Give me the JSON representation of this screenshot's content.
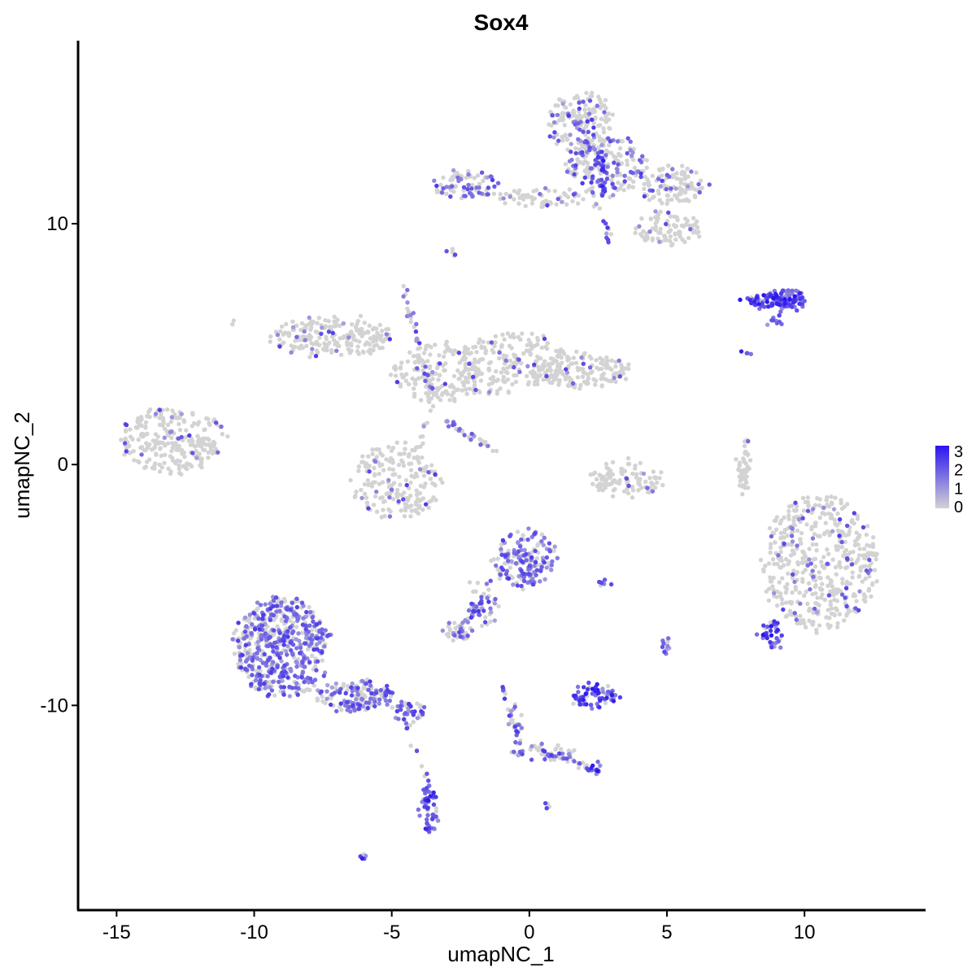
{
  "chart_data": {
    "type": "scatter",
    "title": "Sox4",
    "xlabel": "umapNC_1",
    "ylabel": "umapNC_2",
    "xlim": [
      -16.4,
      14.4
    ],
    "ylim": [
      -18.5,
      17.6
    ],
    "x_ticks": [
      -15,
      -10,
      -5,
      0,
      5,
      10
    ],
    "y_ticks": [
      -10,
      0,
      10
    ],
    "x_tick_labels": [
      "-15",
      "-10",
      "-5",
      "0",
      "5",
      "10"
    ],
    "y_tick_labels": [
      "-10",
      "0",
      "10"
    ],
    "grid": false,
    "color_scale": {
      "label_values": [
        0,
        1,
        2,
        3
      ],
      "labels": [
        "0",
        "1",
        "2",
        "3"
      ],
      "low_color": "#d3d3d3",
      "high_color": "#2a14f0",
      "legend_position": "right"
    },
    "clusters": [
      {
        "cx": -13.0,
        "cy": 1.0,
        "rx": 1.9,
        "ry": 1.4,
        "n": 260,
        "expr": 0.08
      },
      {
        "cx": -7.2,
        "cy": 5.3,
        "rx": 2.2,
        "ry": 0.8,
        "n": 220,
        "expr": 0.06
      },
      {
        "cx": -3.4,
        "cy": 3.8,
        "rx": 1.6,
        "ry": 1.2,
        "n": 160,
        "expr": 0.08
      },
      {
        "cx": -0.6,
        "cy": 4.3,
        "rx": 2.0,
        "ry": 1.2,
        "n": 200,
        "expr": 0.06
      },
      {
        "cx": 1.8,
        "cy": 3.9,
        "rx": 1.9,
        "ry": 0.7,
        "n": 160,
        "expr": 0.05
      },
      {
        "cx": -4.8,
        "cy": -0.7,
        "rx": 1.6,
        "ry": 1.6,
        "n": 200,
        "expr": 0.1
      },
      {
        "cx": 3.5,
        "cy": -0.6,
        "rx": 1.3,
        "ry": 0.8,
        "n": 110,
        "expr": 0.03
      },
      {
        "cx": 1.8,
        "cy": 14.2,
        "rx": 1.2,
        "ry": 1.3,
        "n": 170,
        "expr": 0.25
      },
      {
        "cx": 2.8,
        "cy": 12.4,
        "rx": 1.5,
        "ry": 1.2,
        "n": 190,
        "expr": 0.3
      },
      {
        "cx": 5.2,
        "cy": 11.6,
        "rx": 1.2,
        "ry": 0.8,
        "n": 110,
        "expr": 0.12
      },
      {
        "cx": 5.0,
        "cy": 9.8,
        "rx": 1.1,
        "ry": 0.7,
        "n": 90,
        "expr": 0.1
      },
      {
        "cx": -2.3,
        "cy": 11.6,
        "rx": 1.2,
        "ry": 0.6,
        "n": 80,
        "expr": 0.35
      },
      {
        "cx": 0.4,
        "cy": 11.1,
        "rx": 1.6,
        "ry": 0.35,
        "n": 60,
        "expr": 0.15
      },
      {
        "cx": 8.6,
        "cy": 6.8,
        "rx": 0.9,
        "ry": 0.25,
        "n": 55,
        "expr": 0.85
      },
      {
        "cx": 9.4,
        "cy": 6.9,
        "rx": 0.6,
        "ry": 0.35,
        "n": 70,
        "expr": 0.95
      },
      {
        "cx": 10.6,
        "cy": -4.1,
        "rx": 2.1,
        "ry": 2.8,
        "n": 480,
        "expr": 0.12
      },
      {
        "cx": 8.8,
        "cy": -7.0,
        "rx": 0.4,
        "ry": 0.5,
        "n": 35,
        "expr": 0.8
      },
      {
        "cx": 7.8,
        "cy": -0.2,
        "rx": 0.2,
        "ry": 1.2,
        "n": 40,
        "expr": 0.03
      },
      {
        "cx": -0.2,
        "cy": -3.9,
        "rx": 1.1,
        "ry": 1.2,
        "n": 170,
        "expr": 0.6
      },
      {
        "cx": -1.7,
        "cy": -5.8,
        "rx": 0.5,
        "ry": 1.0,
        "n": 45,
        "expr": 0.45
      },
      {
        "cx": -2.6,
        "cy": -6.9,
        "rx": 0.5,
        "ry": 0.35,
        "n": 40,
        "expr": 0.4
      },
      {
        "cx": -9.0,
        "cy": -7.6,
        "rx": 1.7,
        "ry": 2.1,
        "n": 560,
        "expr": 0.6
      },
      {
        "cx": -6.3,
        "cy": -9.6,
        "rx": 1.4,
        "ry": 0.6,
        "n": 150,
        "expr": 0.5
      },
      {
        "cx": -4.3,
        "cy": -10.2,
        "rx": 0.6,
        "ry": 0.4,
        "n": 40,
        "expr": 0.5
      },
      {
        "cx": -3.6,
        "cy": -14.3,
        "rx": 0.35,
        "ry": 1.0,
        "n": 55,
        "expr": 0.75
      },
      {
        "cx": 2.4,
        "cy": -9.6,
        "rx": 0.8,
        "ry": 0.45,
        "n": 70,
        "expr": 0.85
      },
      {
        "cx": 0.5,
        "cy": -12.0,
        "rx": 1.2,
        "ry": 0.3,
        "n": 45,
        "expr": 0.5
      },
      {
        "cx": 2.4,
        "cy": -12.6,
        "rx": 0.3,
        "ry": 0.2,
        "n": 15,
        "expr": 0.8
      },
      {
        "cx": -0.5,
        "cy": -10.6,
        "rx": 0.2,
        "ry": 0.8,
        "n": 20,
        "expr": 0.45
      },
      {
        "cx": 5.0,
        "cy": -7.5,
        "rx": 0.2,
        "ry": 0.3,
        "n": 12,
        "expr": 0.6
      },
      {
        "cx": 2.8,
        "cy": -4.9,
        "rx": 0.3,
        "ry": 0.1,
        "n": 8,
        "expr": 0.6
      },
      {
        "cx": -6.1,
        "cy": -16.3,
        "rx": 0.15,
        "ry": 0.1,
        "n": 6,
        "expr": 0.9
      },
      {
        "cx": -2.8,
        "cy": 8.8,
        "rx": 0.1,
        "ry": 0.2,
        "n": 6,
        "expr": 0.4
      },
      {
        "cx": 0.6,
        "cy": -14.1,
        "rx": 0.1,
        "ry": 0.1,
        "n": 4,
        "expr": 0.5
      },
      {
        "cx": 8.0,
        "cy": 4.7,
        "rx": 0.2,
        "ry": 0.1,
        "n": 4,
        "expr": 0.8
      },
      {
        "cx": 9.0,
        "cy": 6.0,
        "rx": 0.3,
        "ry": 0.2,
        "n": 10,
        "expr": 0.8
      },
      {
        "cx": -10.8,
        "cy": 6.0,
        "rx": 0.05,
        "ry": 0.05,
        "n": 2,
        "expr": 0.0
      }
    ],
    "branches": [
      {
        "from": [
          -4.6,
          7.5
        ],
        "to": [
          -3.5,
          2.8
        ],
        "n": 40,
        "expr": 0.4
      },
      {
        "from": [
          -3.0,
          1.8
        ],
        "to": [
          -1.3,
          0.6
        ],
        "n": 30,
        "expr": 0.5
      },
      {
        "from": [
          -3.5,
          2.8
        ],
        "to": [
          -4.0,
          0.8
        ],
        "n": 12,
        "expr": 0.2
      },
      {
        "from": [
          -1.2,
          3.0
        ],
        "to": [
          -2.8,
          3.0
        ],
        "n": 12,
        "expr": 0.1
      },
      {
        "from": [
          -1.7,
          -5.6
        ],
        "to": [
          -2.6,
          -6.9
        ],
        "n": 18,
        "expr": 0.45
      },
      {
        "from": [
          -4.6,
          -10.4
        ],
        "to": [
          -3.6,
          -13.4
        ],
        "n": 14,
        "expr": 0.45
      },
      {
        "from": [
          -1.0,
          -9.2
        ],
        "to": [
          -0.4,
          -11.8
        ],
        "n": 18,
        "expr": 0.5
      },
      {
        "from": [
          0.1,
          -11.8
        ],
        "to": [
          2.4,
          -12.6
        ],
        "n": 22,
        "expr": 0.45
      },
      {
        "from": [
          2.2,
          11.6
        ],
        "to": [
          3.0,
          9.0
        ],
        "n": 16,
        "expr": 0.4
      },
      {
        "from": [
          2.6,
          12.9
        ],
        "to": [
          2.7,
          11.3
        ],
        "n": 20,
        "expr": 0.9
      },
      {
        "from": [
          7.9,
          1.2
        ],
        "to": [
          7.7,
          -0.8
        ],
        "n": 14,
        "expr": 0.05
      }
    ]
  }
}
